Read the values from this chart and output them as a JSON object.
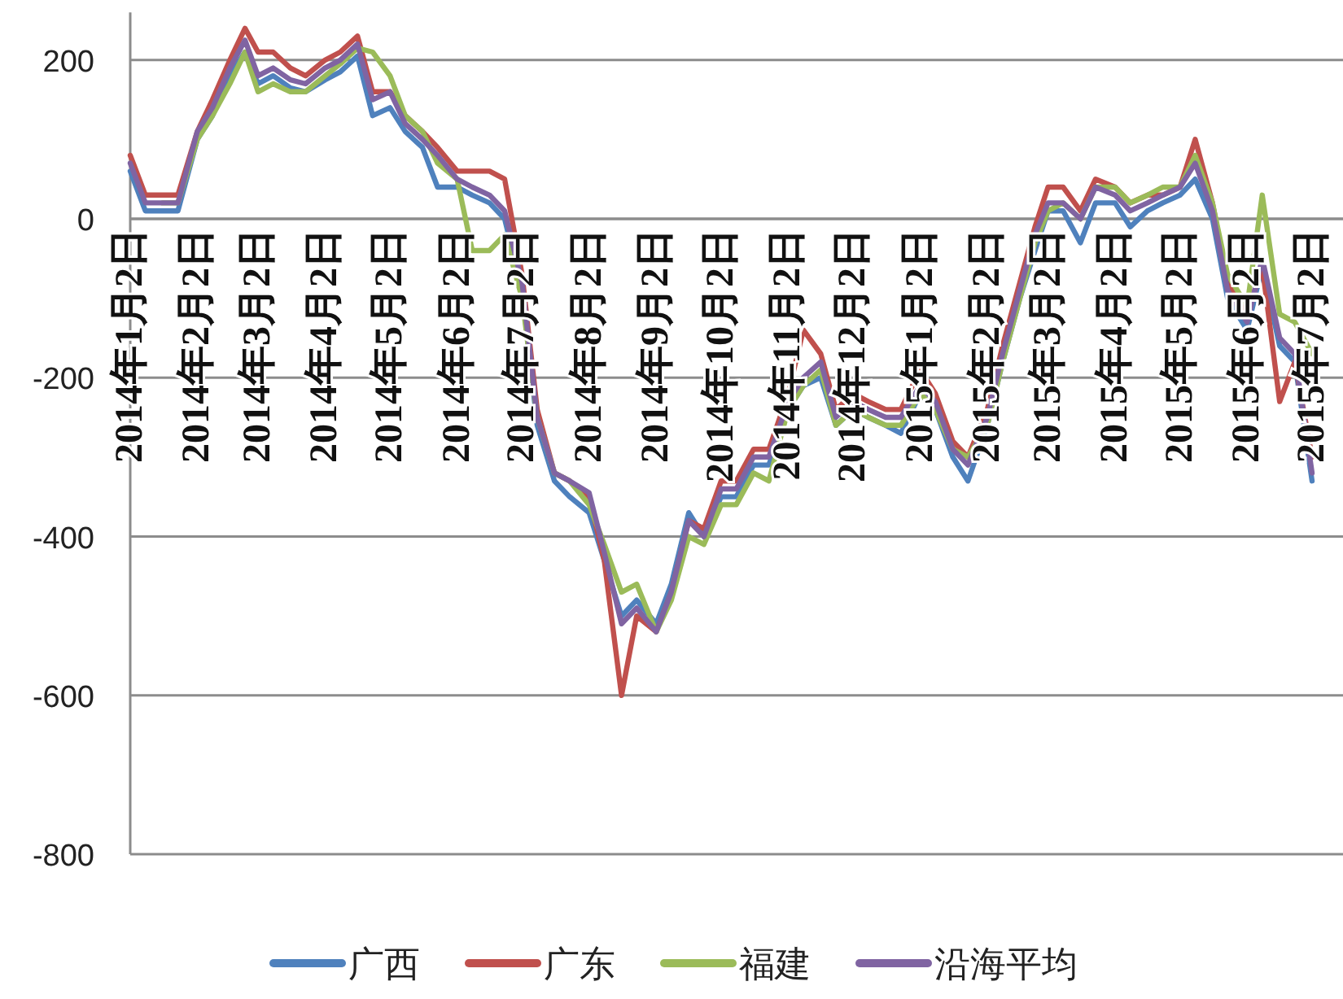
{
  "chart_data": {
    "type": "line",
    "x": [
      "2014-01-02",
      "2014-01-09",
      "2014-01-17",
      "2014-01-24",
      "2014-02-02",
      "2014-02-09",
      "2014-02-17",
      "2014-02-24",
      "2014-03-02",
      "2014-03-09",
      "2014-03-17",
      "2014-03-24",
      "2014-04-02",
      "2014-04-09",
      "2014-04-17",
      "2014-04-24",
      "2014-05-02",
      "2014-05-09",
      "2014-05-17",
      "2014-05-24",
      "2014-06-02",
      "2014-06-09",
      "2014-06-17",
      "2014-06-24",
      "2014-07-02",
      "2014-07-09",
      "2014-07-17",
      "2014-07-24",
      "2014-08-02",
      "2014-08-09",
      "2014-08-17",
      "2014-08-24",
      "2014-09-02",
      "2014-09-09",
      "2014-09-17",
      "2014-09-24",
      "2014-10-02",
      "2014-10-09",
      "2014-10-17",
      "2014-10-24",
      "2014-11-02",
      "2014-11-09",
      "2014-11-17",
      "2014-11-24",
      "2014-12-02",
      "2014-12-09",
      "2014-12-17",
      "2014-12-24",
      "2015-01-02",
      "2015-01-09",
      "2015-01-17",
      "2015-01-24",
      "2015-02-02",
      "2015-02-09",
      "2015-02-17",
      "2015-02-24",
      "2015-03-02",
      "2015-03-09",
      "2015-03-17",
      "2015-03-24",
      "2015-04-02",
      "2015-04-09",
      "2015-04-17",
      "2015-04-24",
      "2015-05-02",
      "2015-05-09",
      "2015-05-17",
      "2015-05-24",
      "2015-06-02",
      "2015-06-09",
      "2015-06-17",
      "2015-06-24",
      "2015-07-02"
    ],
    "xlim": [
      "2014-01-02",
      "2015-07-02"
    ],
    "xticks": [
      {
        "value": "2014-01-02",
        "label": "2014年1月2日"
      },
      {
        "value": "2014-02-02",
        "label": "2014年2月2日"
      },
      {
        "value": "2014-03-02",
        "label": "2014年3月2日"
      },
      {
        "value": "2014-04-02",
        "label": "2014年4月2日"
      },
      {
        "value": "2014-05-02",
        "label": "2014年5月2日"
      },
      {
        "value": "2014-06-02",
        "label": "2014年6月2日"
      },
      {
        "value": "2014-07-02",
        "label": "2014年7月2日"
      },
      {
        "value": "2014-08-02",
        "label": "2014年8月2日"
      },
      {
        "value": "2014-09-02",
        "label": "2014年9月2日"
      },
      {
        "value": "2014-10-02",
        "label": "2014年10月2日"
      },
      {
        "value": "2014-11-02",
        "label": "2014年11月2日"
      },
      {
        "value": "2014-12-02",
        "label": "2014年12月2日"
      },
      {
        "value": "2015-01-02",
        "label": "2015年1月2日"
      },
      {
        "value": "2015-02-02",
        "label": "2015年2月2日"
      },
      {
        "value": "2015-03-02",
        "label": "2015年3月2日"
      },
      {
        "value": "2015-04-02",
        "label": "2015年4月2日"
      },
      {
        "value": "2015-05-02",
        "label": "2015年5月2日"
      },
      {
        "value": "2015-06-02",
        "label": "2015年6月2日"
      },
      {
        "value": "2015-07-02",
        "label": "2015年7月2日"
      }
    ],
    "ylim": [
      -800,
      260
    ],
    "yticks": [
      -800,
      -600,
      -400,
      -200,
      0,
      200
    ],
    "grid": "y",
    "legend": "bottom",
    "series": [
      {
        "name": "广西",
        "color": "#4f81bd",
        "values": [
          60,
          10,
          10,
          10,
          100,
          130,
          180,
          210,
          170,
          180,
          165,
          160,
          175,
          185,
          205,
          130,
          140,
          110,
          90,
          40,
          40,
          30,
          20,
          0,
          -90,
          -260,
          -330,
          -350,
          -370,
          -430,
          -500,
          -480,
          -510,
          -460,
          -370,
          -400,
          -350,
          -350,
          -310,
          -310,
          -240,
          -210,
          -200,
          -260,
          -240,
          -250,
          -260,
          -270,
          -220,
          -240,
          -300,
          -330,
          -260,
          -180,
          -100,
          -40,
          10,
          10,
          -30,
          20,
          20,
          -10,
          10,
          20,
          30,
          50,
          0,
          -100,
          -140,
          -60,
          -160,
          -180,
          -330
        ]
      },
      {
        "name": "广东",
        "color": "#c0504d",
        "values": [
          80,
          30,
          30,
          30,
          110,
          150,
          200,
          240,
          210,
          210,
          190,
          180,
          200,
          210,
          230,
          160,
          160,
          130,
          110,
          90,
          60,
          60,
          60,
          50,
          -70,
          -240,
          -320,
          -330,
          -350,
          -430,
          -600,
          -500,
          -520,
          -470,
          -380,
          -390,
          -330,
          -330,
          -290,
          -290,
          -220,
          -140,
          -170,
          -240,
          -220,
          -230,
          -240,
          -240,
          -190,
          -220,
          -280,
          -300,
          -240,
          -160,
          -80,
          -10,
          40,
          40,
          10,
          50,
          40,
          20,
          30,
          30,
          40,
          100,
          20,
          -80,
          -120,
          -60,
          -230,
          -180,
          -300
        ]
      },
      {
        "name": "福建",
        "color": "#9bbb59",
        "values": [
          null,
          null,
          20,
          20,
          100,
          130,
          170,
          210,
          160,
          170,
          160,
          160,
          180,
          195,
          215,
          210,
          180,
          130,
          110,
          70,
          50,
          -40,
          -40,
          -20,
          -100,
          -250,
          -320,
          -330,
          -360,
          -410,
          -470,
          -460,
          -520,
          -480,
          -400,
          -410,
          -360,
          -360,
          -320,
          -330,
          -240,
          -210,
          -190,
          -260,
          -240,
          -250,
          -260,
          -260,
          -220,
          -240,
          -290,
          -300,
          -260,
          -180,
          -100,
          -30,
          10,
          20,
          0,
          40,
          40,
          20,
          30,
          40,
          40,
          80,
          20,
          -70,
          -110,
          30,
          -120,
          -130,
          -170
        ]
      },
      {
        "name": "沿海平均",
        "color": "#8064a2",
        "values": [
          70,
          20,
          20,
          20,
          110,
          140,
          190,
          225,
          180,
          190,
          175,
          170,
          190,
          200,
          220,
          150,
          160,
          120,
          100,
          80,
          50,
          40,
          30,
          10,
          -80,
          -250,
          -320,
          -330,
          -345,
          -420,
          -510,
          -490,
          -520,
          -470,
          -380,
          -400,
          -340,
          -340,
          -300,
          -300,
          -230,
          -200,
          -180,
          -250,
          -230,
          -240,
          -250,
          -250,
          -210,
          -230,
          -290,
          -310,
          -250,
          -170,
          -90,
          -20,
          20,
          20,
          0,
          40,
          30,
          10,
          20,
          30,
          40,
          70,
          10,
          -90,
          -130,
          -50,
          -150,
          -170,
          -320
        ]
      }
    ]
  }
}
